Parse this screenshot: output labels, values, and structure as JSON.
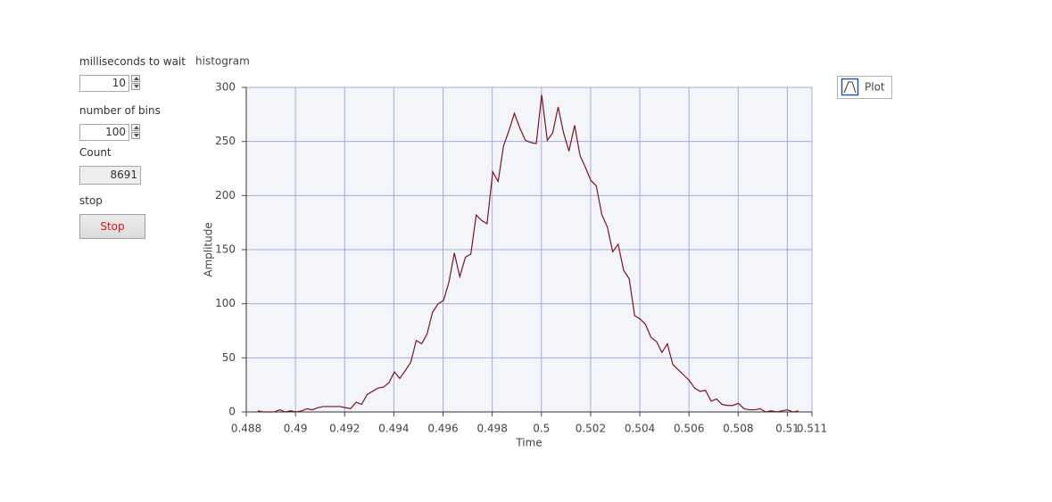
{
  "controls": {
    "wait_label": "milliseconds to wait",
    "wait_value": 10,
    "bins_label": "number of bins",
    "bins_value": 100,
    "count_label": "Count",
    "count_value": 8691,
    "stop_label": "stop",
    "stop_button": "Stop"
  },
  "chart_data": {
    "type": "line",
    "title": "histogram",
    "x_label": "Time",
    "y_label": "Amplitude",
    "x": [
      0.48847,
      0.48869,
      0.48891,
      0.48914,
      0.48936,
      0.48958,
      0.4898,
      0.49002,
      0.49025,
      0.49047,
      0.49069,
      0.49091,
      0.49113,
      0.49136,
      0.49158,
      0.4918,
      0.49202,
      0.49224,
      0.49247,
      0.49269,
      0.49291,
      0.49313,
      0.49335,
      0.49358,
      0.4938,
      0.49402,
      0.49424,
      0.49446,
      0.49469,
      0.49491,
      0.49513,
      0.49535,
      0.49557,
      0.4958,
      0.49602,
      0.49624,
      0.49646,
      0.49668,
      0.49691,
      0.49713,
      0.49735,
      0.49757,
      0.49779,
      0.49802,
      0.49824,
      0.49846,
      0.49868,
      0.4989,
      0.49913,
      0.49935,
      0.49957,
      0.49979,
      0.50001,
      0.50024,
      0.50046,
      0.50068,
      0.5009,
      0.50112,
      0.50135,
      0.50157,
      0.50179,
      0.50201,
      0.50223,
      0.50246,
      0.50268,
      0.5029,
      0.50312,
      0.50334,
      0.50357,
      0.50379,
      0.50401,
      0.50423,
      0.50445,
      0.50468,
      0.5049,
      0.50512,
      0.50534,
      0.50556,
      0.50579,
      0.50601,
      0.50623,
      0.50645,
      0.50667,
      0.5069,
      0.50712,
      0.50734,
      0.50756,
      0.50778,
      0.50801,
      0.50823,
      0.50845,
      0.50867,
      0.50889,
      0.50912,
      0.50934,
      0.50956,
      0.50978,
      0.51,
      0.51023,
      0.51045
    ],
    "series": [
      {
        "name": "Plot",
        "color": "#7a1422",
        "values": [
          1,
          0,
          0,
          0,
          2,
          0,
          1,
          0,
          1,
          3,
          2,
          4,
          5,
          5,
          5,
          5,
          4,
          3,
          9,
          7,
          16,
          19,
          22,
          23,
          27,
          37,
          31,
          38,
          46,
          66,
          63,
          72,
          92,
          100,
          103,
          120,
          147,
          125,
          143,
          146,
          182,
          177,
          174,
          222,
          213,
          246,
          260,
          276,
          262,
          251,
          249,
          248,
          293,
          251,
          258,
          282,
          258,
          241,
          265,
          237,
          226,
          214,
          209,
          182,
          171,
          148,
          155,
          131,
          123,
          89,
          86,
          81,
          69,
          65,
          55,
          63,
          44,
          39,
          34,
          29,
          22,
          19,
          20,
          10,
          12,
          7,
          6,
          6,
          8,
          3,
          2,
          2,
          3,
          0,
          1,
          0,
          1,
          2,
          0,
          1
        ]
      }
    ],
    "xlim": [
      0.488,
      0.511
    ],
    "xticks": [
      0.488,
      0.49,
      0.492,
      0.494,
      0.496,
      0.498,
      0.5,
      0.502,
      0.504,
      0.506,
      0.508,
      0.51,
      0.511
    ],
    "ylim": [
      0,
      300
    ],
    "yticks": [
      0,
      50,
      100,
      150,
      200,
      250,
      300
    ],
    "grid": true,
    "grid_color": "#a9a9dc",
    "plot_background": "#f4f5fa"
  }
}
